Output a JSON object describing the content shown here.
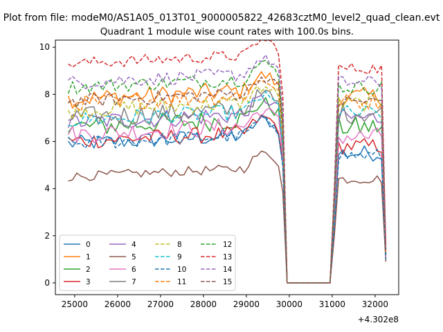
{
  "figure": {
    "suptitle": "Plot from file: modeM0/AS1A05_013T01_9000005822_42683cztM0_level2_quad_clean.evt",
    "axis_offset_label": "+4.302e8"
  },
  "chart_data": {
    "type": "line",
    "title": "Quadrant 1 module wise count rates with 100.0s bins.",
    "xlabel": "",
    "ylabel": "",
    "x_offset": 430200000,
    "xlim": [
      24550,
      32550
    ],
    "ylim": [
      -0.5,
      10.3
    ],
    "xticks": [
      25000,
      26000,
      27000,
      28000,
      29000,
      30000,
      31000,
      32000
    ],
    "yticks": [
      0,
      2,
      4,
      6,
      8,
      10
    ],
    "x_start": 24850,
    "x_step": 100,
    "grid": false,
    "legend": {
      "position": "lower-left",
      "columns": 4
    },
    "series": [
      {
        "name": "0",
        "color": "#1f77b4",
        "dash": "solid",
        "base": 5.9,
        "amp": 0.35,
        "late": 5.5,
        "end": 1.0
      },
      {
        "name": "1",
        "color": "#ff7f0e",
        "dash": "solid",
        "base": 7.8,
        "amp": 0.4,
        "late": 7.9,
        "end": 1.3
      },
      {
        "name": "2",
        "color": "#2ca02c",
        "dash": "solid",
        "base": 6.6,
        "amp": 0.45,
        "late": 6.6,
        "end": 1.2
      },
      {
        "name": "3",
        "color": "#d62728",
        "dash": "solid",
        "base": 6.0,
        "amp": 0.35,
        "late": 5.8,
        "end": 1.1
      },
      {
        "name": "4",
        "color": "#9467bd",
        "dash": "solid",
        "base": 6.8,
        "amp": 0.4,
        "late": 7.0,
        "end": 1.2
      },
      {
        "name": "5",
        "color": "#8c564b",
        "dash": "solid",
        "base": 4.5,
        "amp": 0.2,
        "late": 4.4,
        "end": 0.9
      },
      {
        "name": "6",
        "color": "#e377c2",
        "dash": "solid",
        "base": 6.3,
        "amp": 0.4,
        "late": 6.2,
        "end": 1.1
      },
      {
        "name": "7",
        "color": "#7f7f7f",
        "dash": "solid",
        "base": 7.0,
        "amp": 0.45,
        "late": 7.2,
        "end": 1.2
      },
      {
        "name": "8",
        "color": "#bcbd22",
        "dash": "dashed",
        "base": 7.3,
        "amp": 0.35,
        "late": 7.6,
        "end": 1.3
      },
      {
        "name": "9",
        "color": "#17becf",
        "dash": "dashed",
        "base": 6.9,
        "amp": 0.35,
        "late": 7.2,
        "end": 1.2
      },
      {
        "name": "10",
        "color": "#1f77b4",
        "dash": "dashed",
        "base": 5.9,
        "amp": 0.3,
        "late": 5.4,
        "end": 1.0
      },
      {
        "name": "11",
        "color": "#ff7f0e",
        "dash": "dashed",
        "base": 7.6,
        "amp": 0.35,
        "late": 7.7,
        "end": 1.3
      },
      {
        "name": "12",
        "color": "#2ca02c",
        "dash": "dashed",
        "base": 8.3,
        "amp": 0.3,
        "late": 8.3,
        "end": 1.4
      },
      {
        "name": "13",
        "color": "#d62728",
        "dash": "dashed",
        "base": 9.3,
        "amp": 0.25,
        "late": 9.1,
        "end": 1.6
      },
      {
        "name": "14",
        "color": "#9467bd",
        "dash": "dashed",
        "base": 8.5,
        "amp": 0.3,
        "late": 8.5,
        "end": 1.4
      },
      {
        "name": "15",
        "color": "#8c564b",
        "dash": "dashed",
        "base": 7.7,
        "amp": 0.3,
        "late": 7.7,
        "end": 1.3
      }
    ]
  }
}
